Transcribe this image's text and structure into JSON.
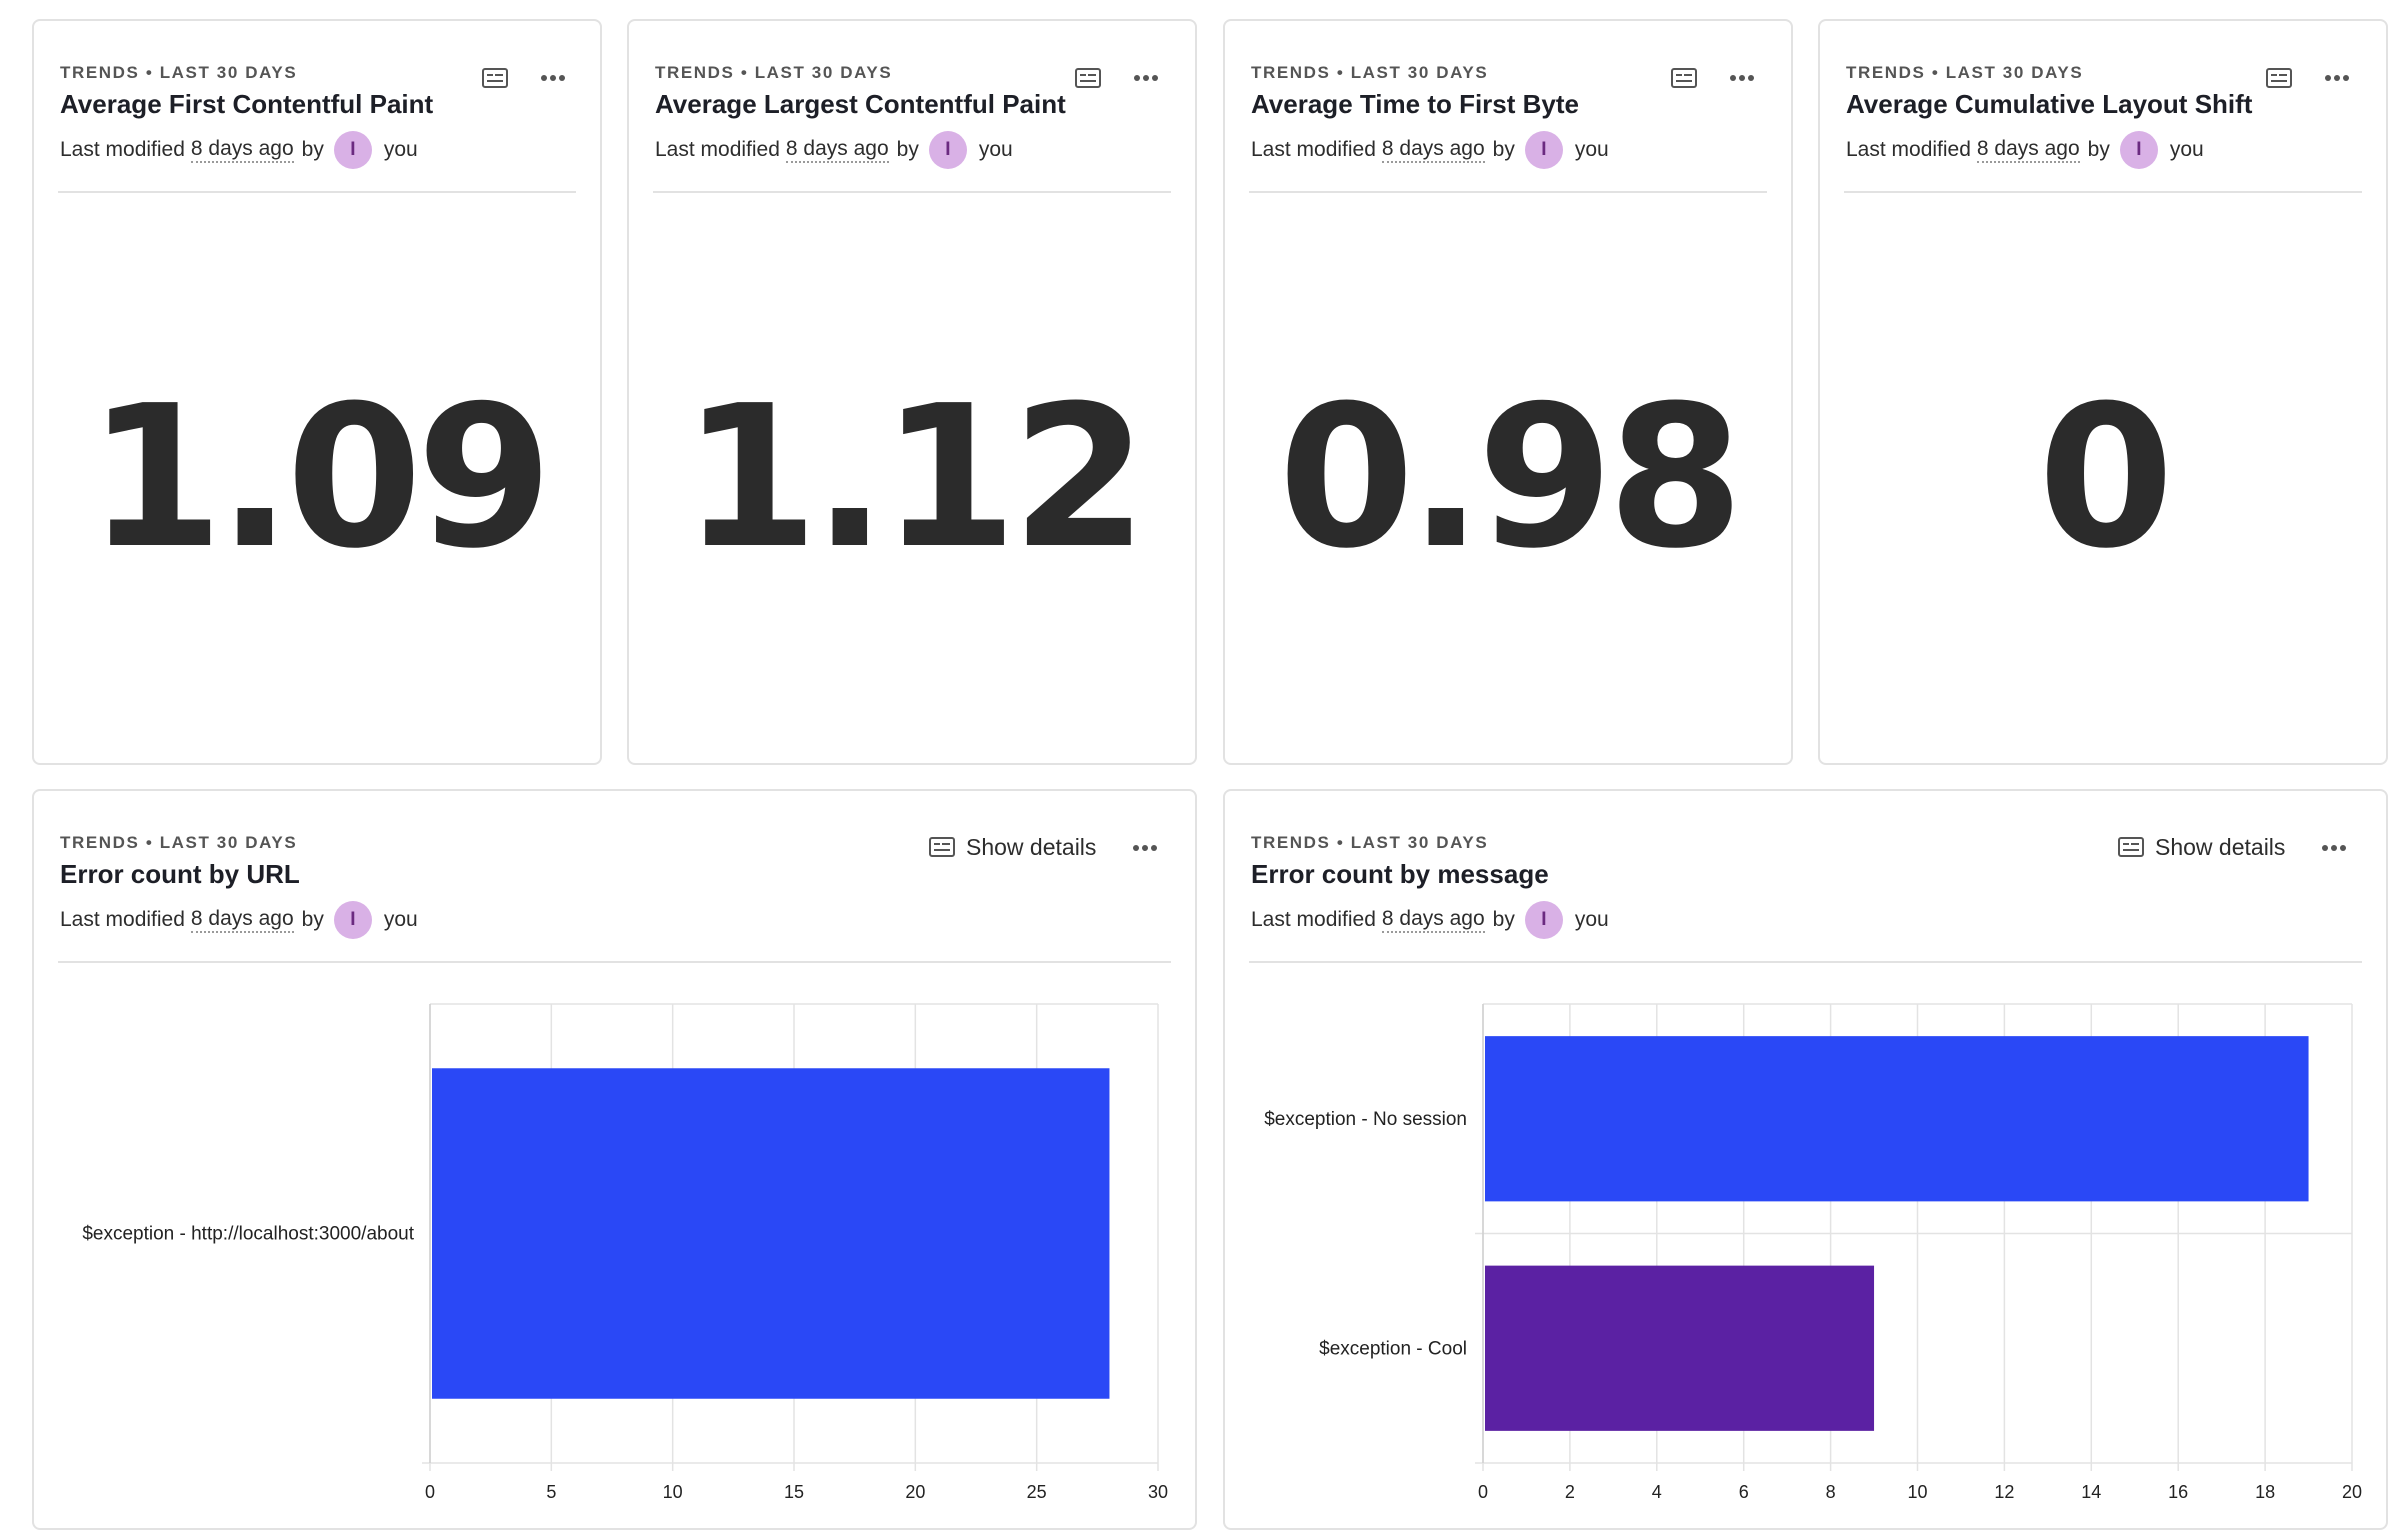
{
  "colors": {
    "border": "#e2e2e2",
    "grid": "#e3e3e3",
    "series_blue": "#2a48f6",
    "series_purple": "#5b21a3",
    "avatar_bg": "#d9b1e6"
  },
  "number_cards": [
    {
      "eyebrow": "TRENDS • LAST 30 DAYS",
      "title": "Average First Contentful Paint",
      "meta_prefix": "Last modified",
      "meta_ago": "8 days ago",
      "meta_by": "by",
      "avatar_initial": "I",
      "user": "you",
      "value": "1.09",
      "details_icon": "details-icon",
      "more_icon": "more-icon"
    },
    {
      "eyebrow": "TRENDS • LAST 30 DAYS",
      "title": "Average Largest Contentful Paint",
      "meta_prefix": "Last modified",
      "meta_ago": "8 days ago",
      "meta_by": "by",
      "avatar_initial": "I",
      "user": "you",
      "value": "1.12",
      "details_icon": "details-icon",
      "more_icon": "more-icon"
    },
    {
      "eyebrow": "TRENDS • LAST 30 DAYS",
      "title": "Average Time to First Byte",
      "meta_prefix": "Last modified",
      "meta_ago": "8 days ago",
      "meta_by": "by",
      "avatar_initial": "I",
      "user": "you",
      "value": "0.98",
      "details_icon": "details-icon",
      "more_icon": "more-icon"
    },
    {
      "eyebrow": "TRENDS • LAST 30 DAYS",
      "title": "Average Cumulative Layout Shift",
      "meta_prefix": "Last modified",
      "meta_ago": "8 days ago",
      "meta_by": "by",
      "avatar_initial": "I",
      "user": "you",
      "value": "0",
      "details_icon": "details-icon",
      "more_icon": "more-icon"
    }
  ],
  "chart_cards": [
    {
      "eyebrow": "TRENDS • LAST 30 DAYS",
      "title": "Error count by URL",
      "meta_prefix": "Last modified",
      "meta_ago": "8 days ago",
      "meta_by": "by",
      "avatar_initial": "I",
      "user": "you",
      "details_label": "Show details"
    },
    {
      "eyebrow": "TRENDS • LAST 30 DAYS",
      "title": "Error count by message",
      "meta_prefix": "Last modified",
      "meta_ago": "8 days ago",
      "meta_by": "by",
      "avatar_initial": "I",
      "user": "you",
      "details_label": "Show details"
    }
  ],
  "chart_data": [
    {
      "type": "bar",
      "orientation": "horizontal",
      "title": "Error count by URL",
      "categories": [
        "$exception - http://localhost:3000/about"
      ],
      "values": [
        28
      ],
      "colors": [
        "#2a48f6"
      ],
      "xlim": [
        0,
        30
      ],
      "xticks": [
        0,
        5,
        10,
        15,
        20,
        25,
        30
      ],
      "grid": true
    },
    {
      "type": "bar",
      "orientation": "horizontal",
      "title": "Error count by message",
      "categories": [
        "$exception - No session",
        "$exception - Cool"
      ],
      "values": [
        19,
        9
      ],
      "colors": [
        "#2a48f6",
        "#5b21a3"
      ],
      "xlim": [
        0,
        20
      ],
      "xticks": [
        0,
        2,
        4,
        6,
        8,
        10,
        12,
        14,
        16,
        18,
        20
      ],
      "grid": true
    }
  ]
}
